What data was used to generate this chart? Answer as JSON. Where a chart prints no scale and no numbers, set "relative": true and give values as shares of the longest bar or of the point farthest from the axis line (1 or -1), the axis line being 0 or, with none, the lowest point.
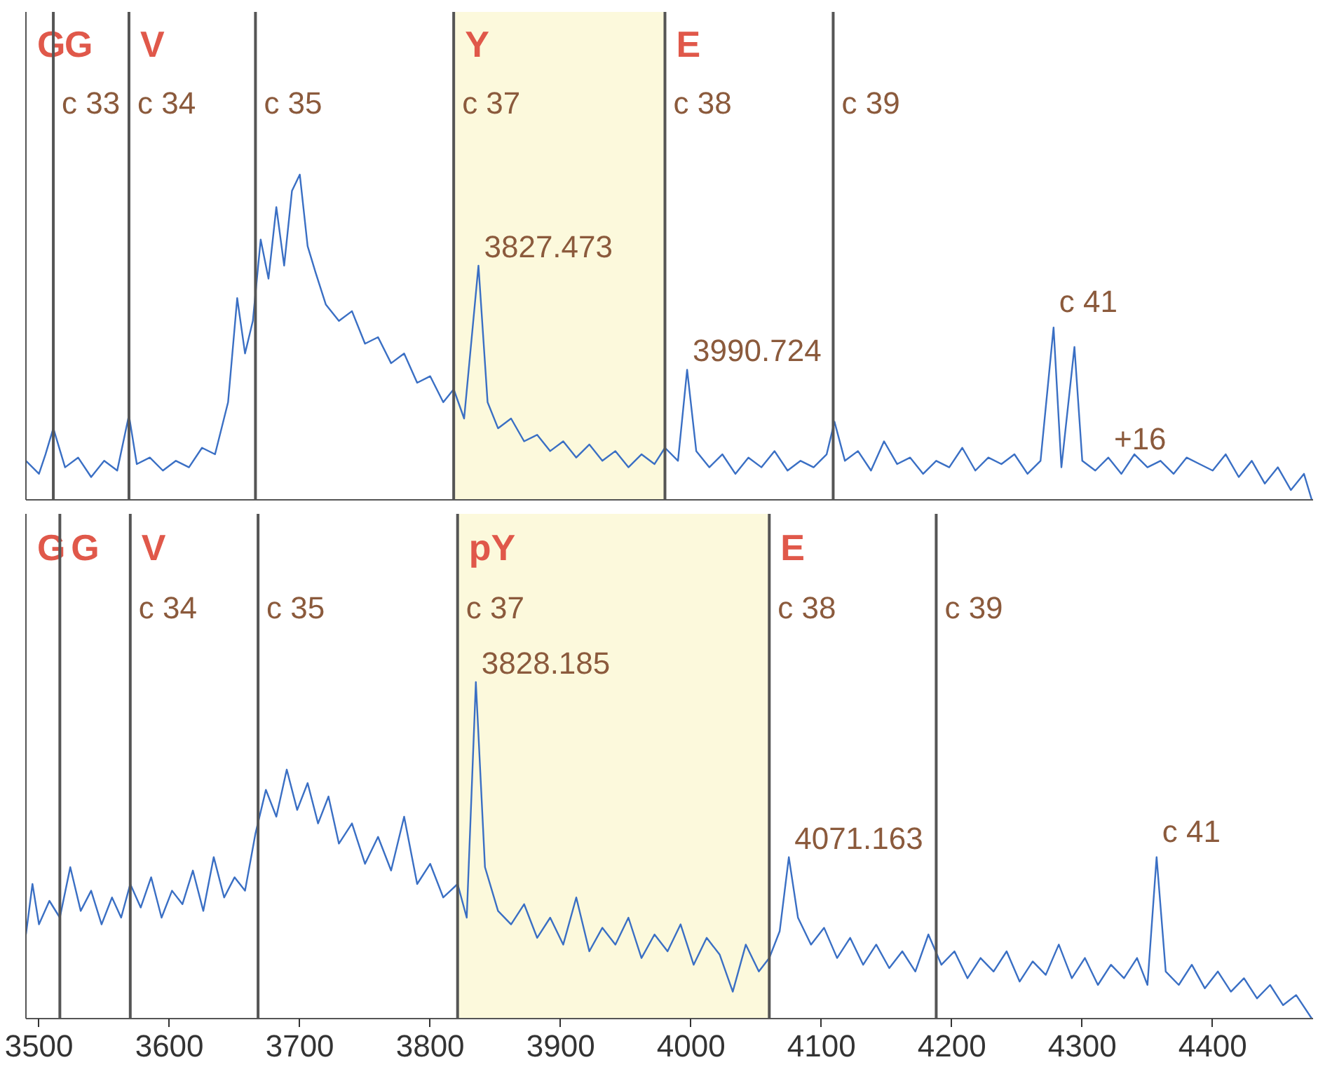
{
  "chart_data": [
    {
      "type": "line",
      "relative": true,
      "tick_labels": false,
      "xlim": [
        3490,
        4477
      ],
      "series": [
        {
          "color": "#3a6fc4",
          "x": [
            3490,
            3500,
            3505,
            3511,
            3520,
            3530,
            3540,
            3550,
            3560,
            3569,
            3575,
            3585,
            3595,
            3605,
            3615,
            3625,
            3635,
            3645,
            3652,
            3658,
            3664,
            3670,
            3676,
            3682,
            3688,
            3694,
            3700,
            3706,
            3712,
            3720,
            3730,
            3740,
            3750,
            3760,
            3770,
            3780,
            3790,
            3800,
            3810,
            3818,
            3826,
            3837,
            3844,
            3852,
            3862,
            3872,
            3882,
            3892,
            3902,
            3912,
            3922,
            3932,
            3942,
            3952,
            3962,
            3972,
            3980,
            3990,
            3997,
            4004,
            4014,
            4024,
            4034,
            4044,
            4054,
            4064,
            4074,
            4084,
            4094,
            4104,
            4110,
            4118,
            4128,
            4138,
            4148,
            4158,
            4168,
            4178,
            4188,
            4198,
            4208,
            4218,
            4228,
            4238,
            4248,
            4258,
            4268,
            4278,
            4284,
            4294,
            4300,
            4310,
            4320,
            4330,
            4340,
            4350,
            4360,
            4370,
            4380,
            4390,
            4400,
            4410,
            4420,
            4430,
            4440,
            4450,
            4460,
            4470,
            4476
          ],
          "values": [
            0.12,
            0.08,
            0.14,
            0.22,
            0.1,
            0.13,
            0.07,
            0.12,
            0.09,
            0.26,
            0.11,
            0.13,
            0.09,
            0.12,
            0.1,
            0.16,
            0.14,
            0.3,
            0.62,
            0.45,
            0.55,
            0.8,
            0.68,
            0.9,
            0.72,
            0.95,
            1.0,
            0.78,
            0.7,
            0.6,
            0.55,
            0.58,
            0.48,
            0.5,
            0.42,
            0.45,
            0.36,
            0.38,
            0.3,
            0.34,
            0.25,
            0.72,
            0.3,
            0.22,
            0.25,
            0.18,
            0.2,
            0.15,
            0.18,
            0.13,
            0.17,
            0.12,
            0.15,
            0.1,
            0.14,
            0.11,
            0.16,
            0.12,
            0.4,
            0.15,
            0.1,
            0.14,
            0.08,
            0.13,
            0.1,
            0.15,
            0.09,
            0.12,
            0.1,
            0.14,
            0.24,
            0.12,
            0.15,
            0.09,
            0.18,
            0.11,
            0.13,
            0.08,
            0.12,
            0.1,
            0.16,
            0.09,
            0.13,
            0.11,
            0.14,
            0.08,
            0.12,
            0.53,
            0.1,
            0.47,
            0.12,
            0.09,
            0.13,
            0.08,
            0.14,
            0.1,
            0.12,
            0.08,
            0.13,
            0.11,
            0.09,
            0.14,
            0.07,
            0.12,
            0.05,
            0.1,
            0.03,
            0.08,
            0
          ]
        }
      ],
      "ref_lines": [
        {
          "axis": "x",
          "value": 3511,
          "color": "#555555",
          "label": "c 33"
        },
        {
          "axis": "x",
          "value": 3569,
          "color": "#555555",
          "label": "c 34"
        },
        {
          "axis": "x",
          "value": 3666,
          "color": "#555555",
          "label": "c 35"
        },
        {
          "axis": "x",
          "value": 3818,
          "color": "#555555",
          "label": "c 37"
        },
        {
          "axis": "x",
          "value": 3980,
          "color": "#555555",
          "label": "c 38"
        },
        {
          "axis": "x",
          "value": 4109,
          "color": "#555555",
          "label": "c 39"
        }
      ],
      "bands": [
        {
          "axis": "x",
          "from": 3818,
          "to": 3980,
          "color": "#fcf9dc"
        }
      ],
      "annotations": [
        "G",
        "G",
        "V",
        "Y",
        "E",
        {
          "text": "3827.473",
          "x": 3837,
          "y": 0.72
        },
        {
          "text": "3990.724",
          "x": 3997,
          "y": 0.4
        },
        {
          "text": "c 41",
          "x": 4278,
          "y": 0.53
        },
        {
          "text": "+16",
          "x": 4320,
          "y": 0.13
        }
      ]
    },
    {
      "type": "line",
      "relative": true,
      "tick_labels": "x",
      "xlim": [
        3490,
        4477
      ],
      "xticks": [
        3500,
        3600,
        3700,
        3800,
        3900,
        4000,
        4100,
        4200,
        4300,
        4400
      ],
      "series": [
        {
          "color": "#3a6fc4",
          "x": [
            3490,
            3495,
            3500,
            3508,
            3516,
            3524,
            3532,
            3540,
            3548,
            3556,
            3563,
            3570,
            3578,
            3586,
            3594,
            3602,
            3610,
            3618,
            3626,
            3634,
            3642,
            3650,
            3658,
            3666,
            3674,
            3682,
            3690,
            3698,
            3706,
            3714,
            3722,
            3730,
            3740,
            3750,
            3760,
            3770,
            3780,
            3790,
            3800,
            3810,
            3821,
            3828,
            3835,
            3842,
            3852,
            3862,
            3872,
            3882,
            3892,
            3902,
            3912,
            3922,
            3932,
            3942,
            3952,
            3962,
            3972,
            3982,
            3992,
            4002,
            4012,
            4022,
            4032,
            4042,
            4052,
            4060,
            4068,
            4075,
            4082,
            4092,
            4102,
            4112,
            4122,
            4132,
            4142,
            4152,
            4162,
            4172,
            4182,
            4192,
            4202,
            4212,
            4222,
            4232,
            4242,
            4252,
            4262,
            4272,
            4282,
            4292,
            4302,
            4312,
            4322,
            4332,
            4342,
            4350,
            4357,
            4364,
            4374,
            4384,
            4394,
            4404,
            4414,
            4424,
            4434,
            4444,
            4454,
            4464,
            4476
          ],
          "values": [
            0.25,
            0.4,
            0.28,
            0.35,
            0.3,
            0.45,
            0.32,
            0.38,
            0.28,
            0.36,
            0.3,
            0.4,
            0.33,
            0.42,
            0.3,
            0.38,
            0.34,
            0.44,
            0.32,
            0.48,
            0.36,
            0.42,
            0.38,
            0.55,
            0.68,
            0.6,
            0.74,
            0.62,
            0.7,
            0.58,
            0.66,
            0.52,
            0.58,
            0.46,
            0.54,
            0.44,
            0.6,
            0.4,
            0.46,
            0.36,
            0.4,
            0.3,
            1.0,
            0.45,
            0.32,
            0.28,
            0.34,
            0.24,
            0.3,
            0.22,
            0.36,
            0.2,
            0.27,
            0.22,
            0.3,
            0.18,
            0.25,
            0.2,
            0.28,
            0.16,
            0.24,
            0.19,
            0.08,
            0.22,
            0.14,
            0.18,
            0.26,
            0.48,
            0.3,
            0.22,
            0.27,
            0.18,
            0.24,
            0.16,
            0.22,
            0.15,
            0.2,
            0.14,
            0.25,
            0.16,
            0.2,
            0.12,
            0.18,
            0.14,
            0.2,
            0.11,
            0.17,
            0.13,
            0.22,
            0.12,
            0.18,
            0.1,
            0.16,
            0.12,
            0.18,
            0.1,
            0.48,
            0.14,
            0.1,
            0.16,
            0.09,
            0.14,
            0.08,
            0.12,
            0.06,
            0.1,
            0.04,
            0.07,
            0
          ]
        }
      ],
      "ref_lines": [
        {
          "axis": "x",
          "value": 3516,
          "color": "#555555"
        },
        {
          "axis": "x",
          "value": 3570,
          "color": "#555555",
          "label": "c 34"
        },
        {
          "axis": "x",
          "value": 3668,
          "color": "#555555",
          "label": "c 35"
        },
        {
          "axis": "x",
          "value": 3821,
          "color": "#555555",
          "label": "c 37"
        },
        {
          "axis": "x",
          "value": 4060,
          "color": "#555555",
          "label": "c 38"
        },
        {
          "axis": "x",
          "value": 4188,
          "color": "#555555",
          "label": "c 39"
        }
      ],
      "bands": [
        {
          "axis": "x",
          "from": 3821,
          "to": 4060,
          "color": "#fcf9dc"
        }
      ],
      "annotations": [
        "G",
        "G",
        "V",
        "pY",
        "E",
        {
          "text": "3828.185",
          "x": 3835,
          "y": 1.0
        },
        {
          "text": "4071.163",
          "x": 4075,
          "y": 0.48
        },
        {
          "text": "c 41",
          "x": 4357,
          "y": 0.48
        }
      ]
    }
  ]
}
